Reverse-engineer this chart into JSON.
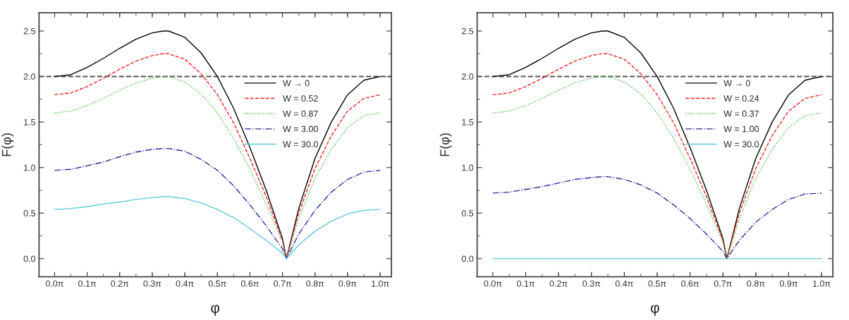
{
  "chart_data": [
    {
      "type": "line",
      "xlabel": "φ",
      "ylabel": "F(φ)",
      "x": [
        0,
        0.157,
        0.314,
        0.471,
        0.628,
        0.785,
        0.942,
        1.047,
        1.1,
        1.257,
        1.414,
        1.571,
        1.728,
        1.885,
        2.042,
        2.199,
        2.237,
        2.356,
        2.513,
        2.67,
        2.827,
        2.985,
        3.142
      ],
      "series": [
        {
          "name": "W → 0",
          "color": "#000000",
          "line_style": "solid",
          "values": [
            2.0,
            2.02,
            2.1,
            2.2,
            2.31,
            2.41,
            2.48,
            2.5,
            2.5,
            2.43,
            2.26,
            2.0,
            1.65,
            1.22,
            0.75,
            0.22,
            0,
            0.55,
            1.1,
            1.5,
            1.8,
            1.96,
            2.0
          ]
        },
        {
          "name": "W = 0.52",
          "color": "#ff2020",
          "line_style": "dashed",
          "values": [
            1.8,
            1.82,
            1.89,
            1.98,
            2.08,
            2.17,
            2.23,
            2.25,
            2.25,
            2.19,
            2.03,
            1.8,
            1.49,
            1.1,
            0.68,
            0.2,
            0,
            0.5,
            0.99,
            1.35,
            1.62,
            1.76,
            1.8
          ]
        },
        {
          "name": "W = 0.87",
          "color": "#33bb33",
          "line_style": "dotted",
          "values": [
            1.6,
            1.62,
            1.68,
            1.76,
            1.85,
            1.93,
            1.98,
            2.0,
            2.0,
            1.94,
            1.81,
            1.6,
            1.32,
            0.98,
            0.6,
            0.18,
            0,
            0.44,
            0.88,
            1.2,
            1.44,
            1.57,
            1.6
          ]
        },
        {
          "name": "W = 3.00",
          "color": "#2b2ba0",
          "line_style": "dashdot",
          "values": [
            0.97,
            0.98,
            1.02,
            1.06,
            1.12,
            1.17,
            1.2,
            1.21,
            1.21,
            1.18,
            1.09,
            0.97,
            0.8,
            0.59,
            0.36,
            0.11,
            0,
            0.27,
            0.53,
            0.73,
            0.87,
            0.95,
            0.97
          ]
        },
        {
          "name": "W = 30.0",
          "color": "#5cc8dc",
          "line_style": "solid",
          "values": [
            0.54,
            0.55,
            0.57,
            0.6,
            0.62,
            0.65,
            0.67,
            0.68,
            0.68,
            0.66,
            0.61,
            0.54,
            0.45,
            0.33,
            0.2,
            0.06,
            0,
            0.15,
            0.3,
            0.41,
            0.49,
            0.53,
            0.54
          ]
        }
      ],
      "xlim": [
        -0.15,
        3.25
      ],
      "ylim": [
        -0.2,
        2.7
      ],
      "xticks": [
        {
          "value": 0,
          "label": "0.0π"
        },
        {
          "value": 0.3142,
          "label": "0.1π"
        },
        {
          "value": 0.6283,
          "label": "0.2π"
        },
        {
          "value": 0.9425,
          "label": "0.3π"
        },
        {
          "value": 1.2566,
          "label": "0.4π"
        },
        {
          "value": 1.5708,
          "label": "0.5π"
        },
        {
          "value": 1.885,
          "label": "0.6π"
        },
        {
          "value": 2.1991,
          "label": "0.7π"
        },
        {
          "value": 2.5133,
          "label": "0.8π"
        },
        {
          "value": 2.8274,
          "label": "0.9π"
        },
        {
          "value": 3.1416,
          "label": "1.0π"
        }
      ],
      "yticks": [
        {
          "value": 0,
          "label": "0.0"
        },
        0.5,
        {
          "value": 1,
          "label": "1.0"
        },
        1.5,
        {
          "value": 2,
          "label": "2.0"
        },
        2.5
      ],
      "ref_lines": [
        {
          "axis": "y",
          "value": 2.0,
          "color": "#555555",
          "line_style": "dashed"
        }
      ],
      "legend": "right",
      "grid": false
    },
    {
      "type": "line",
      "xlabel": "φ",
      "ylabel": "F(φ)",
      "x": [
        0,
        0.157,
        0.314,
        0.471,
        0.628,
        0.785,
        0.942,
        1.047,
        1.1,
        1.257,
        1.414,
        1.571,
        1.728,
        1.885,
        2.042,
        2.199,
        2.237,
        2.356,
        2.513,
        2.67,
        2.827,
        2.985,
        3.142
      ],
      "series": [
        {
          "name": "W → 0",
          "color": "#000000",
          "line_style": "solid",
          "values": [
            2.0,
            2.02,
            2.1,
            2.2,
            2.31,
            2.41,
            2.48,
            2.5,
            2.5,
            2.43,
            2.26,
            2.0,
            1.65,
            1.22,
            0.75,
            0.22,
            0,
            0.55,
            1.1,
            1.5,
            1.8,
            1.96,
            2.0
          ]
        },
        {
          "name": "W = 0.24",
          "color": "#ff2020",
          "line_style": "dashed",
          "values": [
            1.8,
            1.82,
            1.89,
            1.98,
            2.08,
            2.17,
            2.23,
            2.25,
            2.25,
            2.19,
            2.03,
            1.8,
            1.49,
            1.1,
            0.68,
            0.2,
            0,
            0.5,
            0.99,
            1.35,
            1.62,
            1.76,
            1.8
          ]
        },
        {
          "name": "W = 0.37",
          "color": "#33bb33",
          "line_style": "dotted",
          "values": [
            1.6,
            1.62,
            1.68,
            1.76,
            1.85,
            1.93,
            1.98,
            2.0,
            2.0,
            1.94,
            1.81,
            1.6,
            1.32,
            0.98,
            0.6,
            0.18,
            0,
            0.44,
            0.88,
            1.2,
            1.44,
            1.57,
            1.6
          ]
        },
        {
          "name": "W = 1.00",
          "color": "#2b2ba0",
          "line_style": "dashdot",
          "values": [
            0.72,
            0.73,
            0.76,
            0.79,
            0.83,
            0.87,
            0.89,
            0.9,
            0.9,
            0.87,
            0.81,
            0.72,
            0.59,
            0.44,
            0.27,
            0.08,
            0,
            0.2,
            0.4,
            0.54,
            0.65,
            0.71,
            0.72
          ]
        },
        {
          "name": "W = 30.0",
          "color": "#5cc8dc",
          "line_style": "solid",
          "values": [
            0,
            0,
            0,
            0,
            0,
            0,
            0,
            0,
            0,
            0,
            0,
            0,
            0,
            0,
            0,
            0,
            0,
            0,
            0,
            0,
            0,
            0,
            0
          ]
        }
      ],
      "xlim": [
        -0.15,
        3.25
      ],
      "ylim": [
        -0.2,
        2.7
      ],
      "xticks": [
        {
          "value": 0,
          "label": "0.0π"
        },
        {
          "value": 0.3142,
          "label": "0.1π"
        },
        {
          "value": 0.6283,
          "label": "0.2π"
        },
        {
          "value": 0.9425,
          "label": "0.3π"
        },
        {
          "value": 1.2566,
          "label": "0.4π"
        },
        {
          "value": 1.5708,
          "label": "0.5π"
        },
        {
          "value": 1.885,
          "label": "0.6π"
        },
        {
          "value": 2.1991,
          "label": "0.7π"
        },
        {
          "value": 2.5133,
          "label": "0.8π"
        },
        {
          "value": 2.8274,
          "label": "0.9π"
        },
        {
          "value": 3.1416,
          "label": "1.0π"
        }
      ],
      "yticks": [
        {
          "value": 0,
          "label": "0.0"
        },
        0.5,
        {
          "value": 1,
          "label": "1.0"
        },
        1.5,
        {
          "value": 2,
          "label": "2.0"
        },
        2.5
      ],
      "ref_lines": [
        {
          "axis": "y",
          "value": 2.0,
          "color": "#555555",
          "line_style": "dashed"
        }
      ],
      "legend": "right",
      "grid": false
    }
  ]
}
